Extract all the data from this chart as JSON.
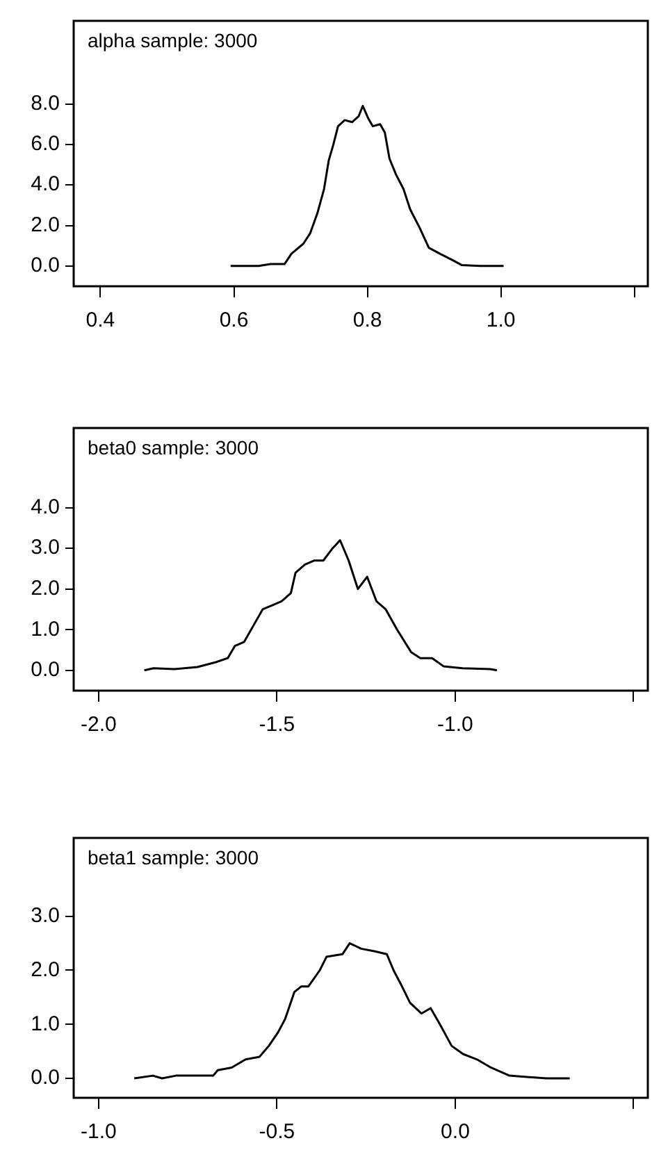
{
  "chart_data": [
    {
      "type": "line",
      "title": "alpha sample: 3000",
      "x": [
        0.595,
        0.637,
        0.655,
        0.676,
        0.686,
        0.704,
        0.714,
        0.725,
        0.735,
        0.742,
        0.749,
        0.756,
        0.766,
        0.777,
        0.787,
        0.793,
        0.801,
        0.808,
        0.819,
        0.826,
        0.833,
        0.843,
        0.854,
        0.864,
        0.878,
        0.892,
        0.909,
        0.927,
        0.941,
        0.969,
        1.004
      ],
      "series": [
        {
          "color": "#000000",
          "values": [
            0,
            0,
            0.1,
            0.1,
            0.6,
            1.1,
            1.6,
            2.6,
            3.8,
            5.2,
            6.0,
            6.9,
            7.2,
            7.1,
            7.4,
            7.9,
            7.3,
            6.9,
            7.0,
            6.6,
            5.3,
            4.5,
            3.8,
            2.8,
            1.9,
            0.9,
            0.6,
            0.3,
            0.05,
            0,
            0
          ]
        }
      ],
      "xlim": [
        0.36,
        1.22
      ],
      "xticks": [
        0.4,
        0.6,
        0.8,
        {
          "value": 1,
          "label": "1.0"
        },
        {
          "value": 1.2,
          "label": null
        }
      ],
      "ylim": [
        -1.0,
        12.1
      ],
      "yticks": [
        {
          "value": 0,
          "label": "0.0"
        },
        {
          "value": 2,
          "label": "2.0"
        },
        {
          "value": 4,
          "label": "4.0"
        },
        {
          "value": 6,
          "label": "6.0"
        },
        {
          "value": 8,
          "label": "8.0"
        }
      ],
      "grid": false,
      "legend": false,
      "marker": "none",
      "line_style": "solid"
    },
    {
      "type": "line",
      "title": "beta0 sample: 3000",
      "x": [
        -1.872,
        -1.846,
        -1.788,
        -1.723,
        -1.671,
        -1.638,
        -1.618,
        -1.592,
        -1.566,
        -1.54,
        -1.513,
        -1.487,
        -1.461,
        -1.448,
        -1.422,
        -1.396,
        -1.37,
        -1.344,
        -1.323,
        -1.299,
        -1.273,
        -1.247,
        -1.221,
        -1.195,
        -1.163,
        -1.124,
        -1.098,
        -1.065,
        -1.033,
        -0.98,
        -0.902,
        -0.883
      ],
      "series": [
        {
          "color": "#000000",
          "values": [
            0,
            0.05,
            0.03,
            0.08,
            0.2,
            0.3,
            0.6,
            0.7,
            1.1,
            1.5,
            1.6,
            1.7,
            1.9,
            2.4,
            2.6,
            2.7,
            2.7,
            3.0,
            3.2,
            2.7,
            2.0,
            2.3,
            1.7,
            1.5,
            1.0,
            0.45,
            0.3,
            0.3,
            0.1,
            0.05,
            0.03,
            0
          ]
        }
      ],
      "xlim": [
        -2.07,
        -0.46
      ],
      "xticks": [
        {
          "value": -2,
          "label": "-2.0"
        },
        -1.5,
        {
          "value": -1,
          "label": "-1.0"
        },
        {
          "value": -0.5,
          "label": null
        }
      ],
      "ylim": [
        -0.5,
        5.96
      ],
      "yticks": [
        {
          "value": 0,
          "label": "0.0"
        },
        {
          "value": 1,
          "label": "1.0"
        },
        {
          "value": 2,
          "label": "2.0"
        },
        {
          "value": 3,
          "label": "3.0"
        },
        {
          "value": 4,
          "label": "4.0"
        }
      ],
      "grid": false,
      "legend": false,
      "marker": "none",
      "line_style": "solid"
    },
    {
      "type": "line",
      "title": "beta1 sample: 3000",
      "x": [
        -0.9,
        -0.848,
        -0.822,
        -0.783,
        -0.679,
        -0.666,
        -0.627,
        -0.588,
        -0.549,
        -0.523,
        -0.497,
        -0.477,
        -0.451,
        -0.432,
        -0.412,
        -0.38,
        -0.361,
        -0.316,
        -0.296,
        -0.264,
        -0.225,
        -0.192,
        -0.173,
        -0.153,
        -0.127,
        -0.095,
        -0.069,
        -0.043,
        -0.01,
        0.022,
        0.061,
        0.1,
        0.152,
        0.256,
        0.321
      ],
      "series": [
        {
          "color": "#000000",
          "values": [
            0,
            0.05,
            0,
            0.05,
            0.05,
            0.15,
            0.2,
            0.35,
            0.4,
            0.6,
            0.85,
            1.1,
            1.6,
            1.7,
            1.7,
            2.0,
            2.25,
            2.3,
            2.5,
            2.4,
            2.35,
            2.3,
            2.0,
            1.75,
            1.4,
            1.2,
            1.3,
            1.0,
            0.6,
            0.45,
            0.35,
            0.2,
            0.05,
            0,
            0
          ]
        }
      ],
      "xlim": [
        -1.07,
        0.54
      ],
      "xticks": [
        {
          "value": -1,
          "label": "-1.0"
        },
        -0.5,
        {
          "value": 0,
          "label": "0.0"
        },
        {
          "value": 0.5,
          "label": null
        }
      ],
      "ylim": [
        -0.36,
        4.45
      ],
      "yticks": [
        {
          "value": 0,
          "label": "0.0"
        },
        {
          "value": 1,
          "label": "1.0"
        },
        {
          "value": 2,
          "label": "2.0"
        },
        {
          "value": 3,
          "label": "3.0"
        }
      ],
      "grid": false,
      "legend": false,
      "marker": "none",
      "line_style": "solid"
    }
  ]
}
